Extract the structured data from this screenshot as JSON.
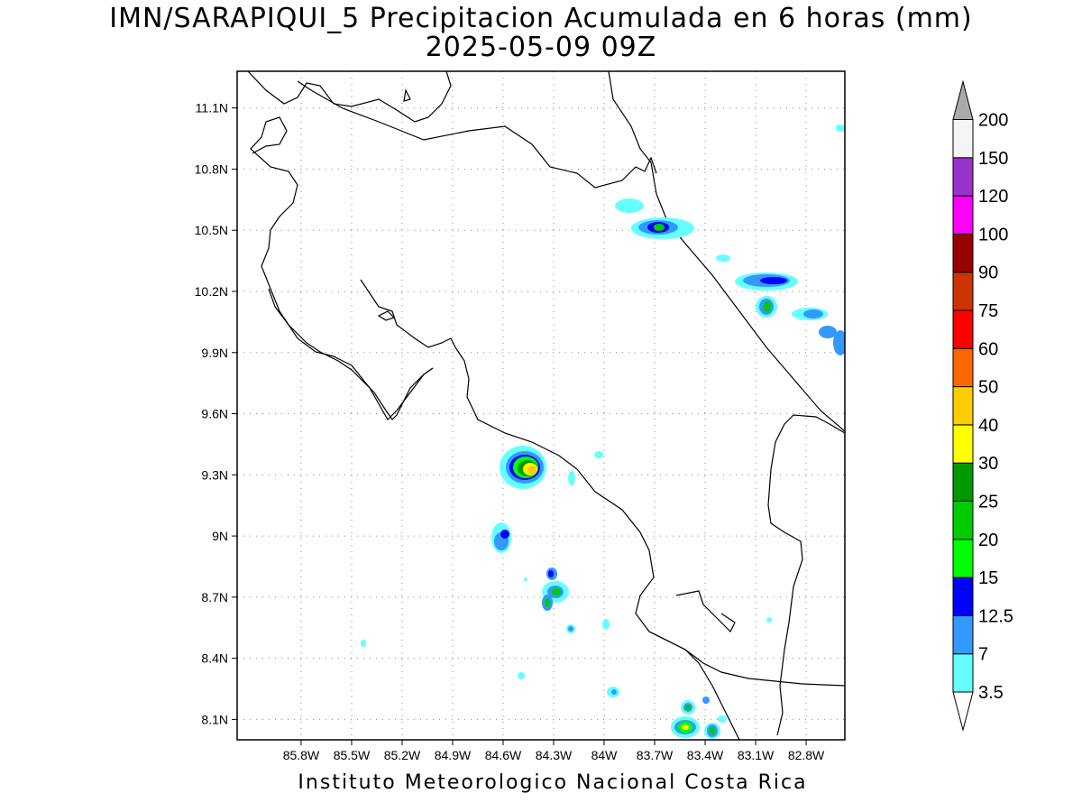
{
  "title": {
    "line1": "IMN/SARAPIQUI_5 Precipitacion Acumulada en 6 horas (mm)",
    "line2": "2025-05-09 09Z"
  },
  "footer": "Instituto Meteorologico Nacional Costa Rica",
  "map": {
    "lon_range": [
      -86.18,
      -82.57
    ],
    "lat_range": [
      8.0,
      11.28
    ],
    "x_ticks": [
      "85.8W",
      "85.5W",
      "85.2W",
      "84.9W",
      "84.6W",
      "84.3W",
      "84W",
      "83.7W",
      "83.4W",
      "83.1W",
      "82.8W"
    ],
    "y_ticks": [
      "11.1N",
      "10.8N",
      "10.5N",
      "10.2N",
      "9.9N",
      "9.6N",
      "9.3N",
      "9N",
      "8.7N",
      "8.4N",
      "8.1N"
    ]
  },
  "colorbar": {
    "labels": [
      "3.5",
      "7",
      "12.5",
      "15",
      "20",
      "25",
      "30",
      "40",
      "50",
      "60",
      "75",
      "90",
      "100",
      "120",
      "150",
      "200"
    ],
    "colors": [
      "#ffffff",
      "#66ffff",
      "#3399ff",
      "#0000ff",
      "#00ff00",
      "#00cc00",
      "#009900",
      "#ffff00",
      "#ffcc00",
      "#ff6600",
      "#ff0000",
      "#cc3300",
      "#990000",
      "#ff00ff",
      "#9933cc",
      "#f5f5f5",
      "#aaaaaa"
    ]
  }
}
